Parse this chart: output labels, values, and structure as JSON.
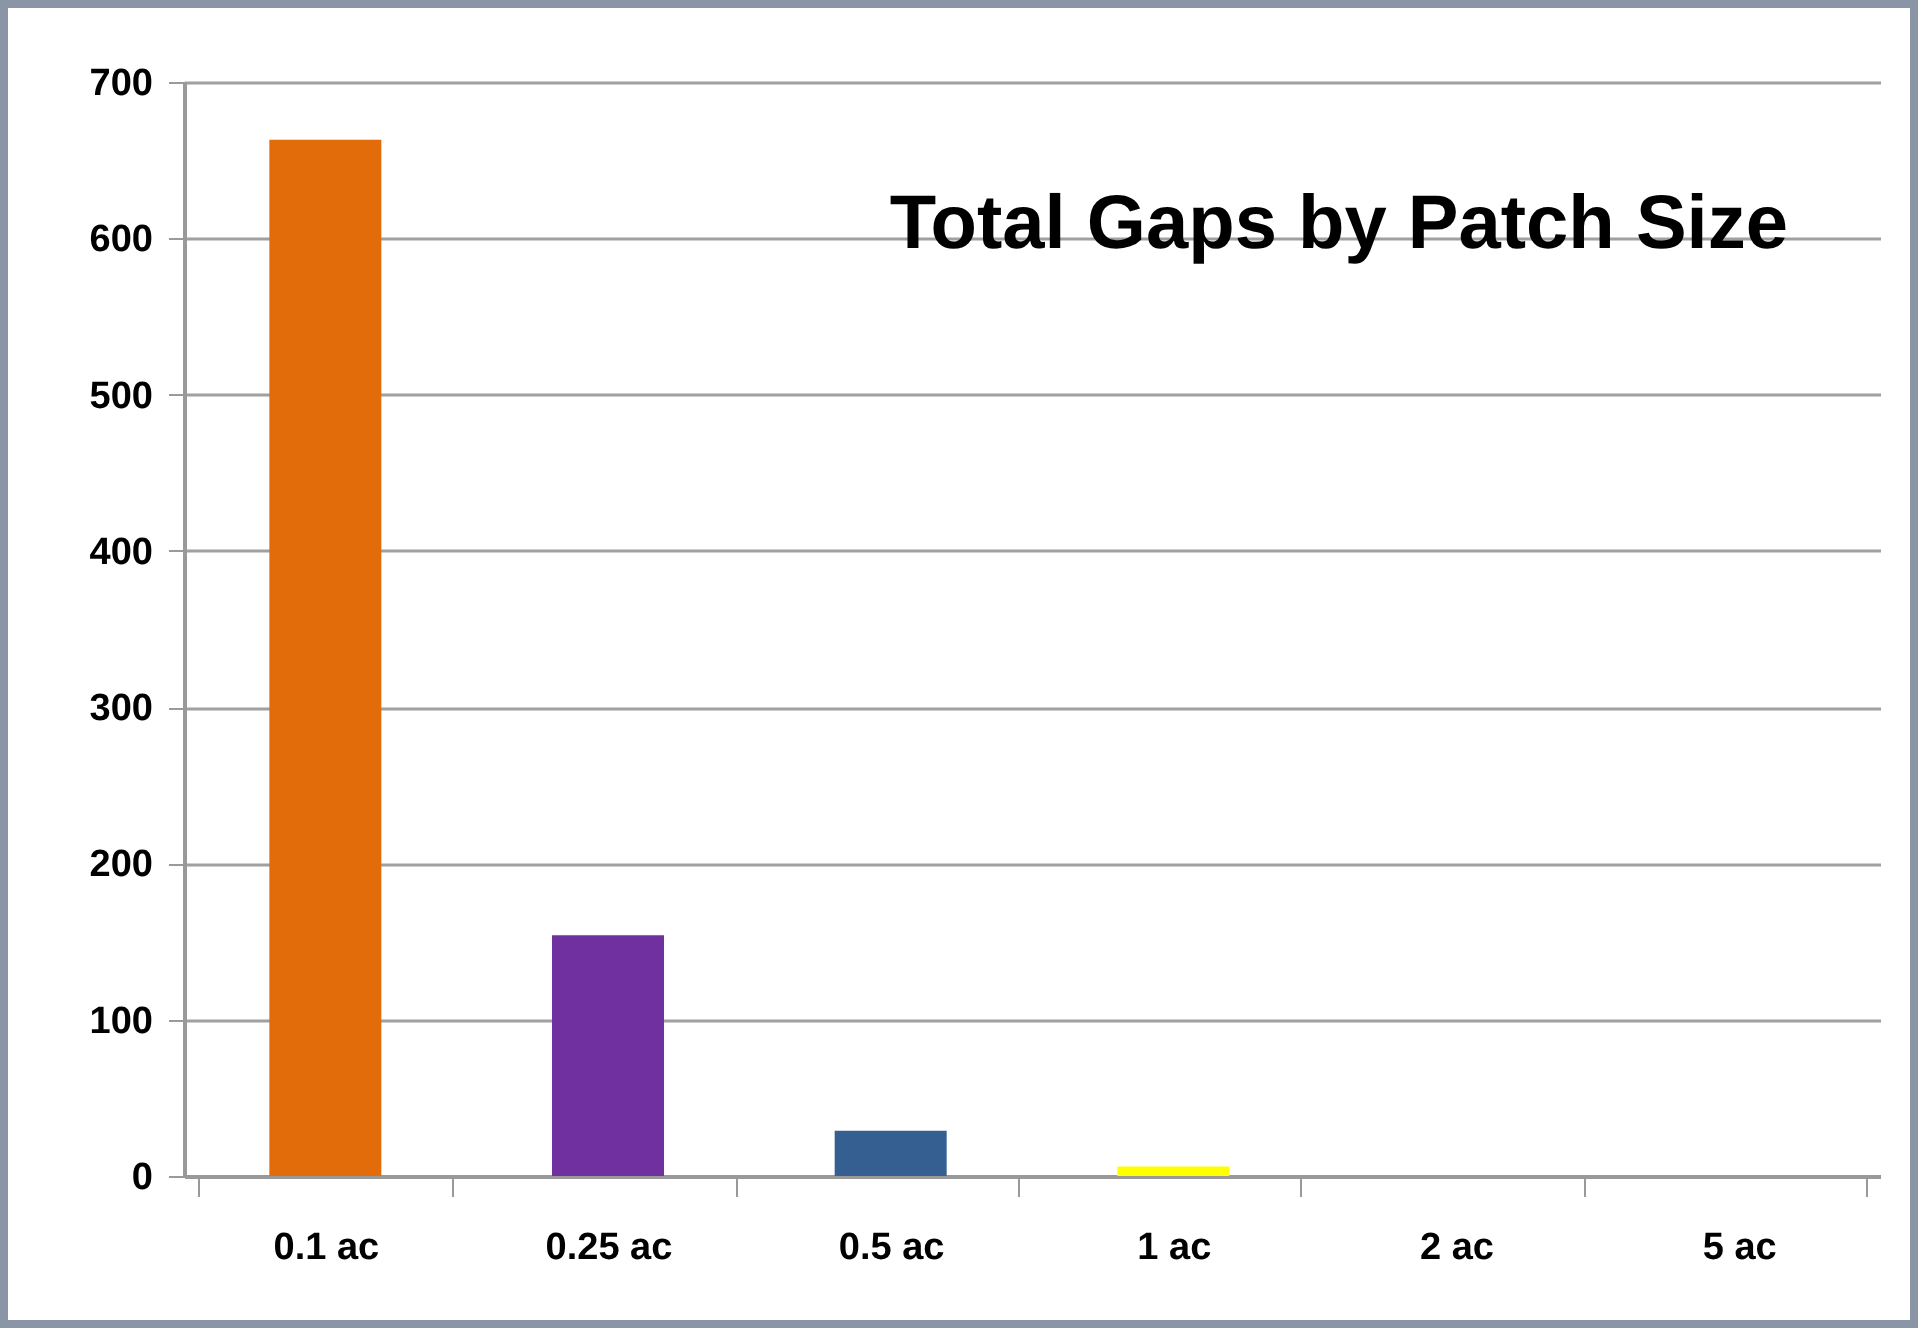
{
  "chart_data": {
    "type": "bar",
    "title": "Total Gaps by Patch Size",
    "categories": [
      "0.1 ac",
      "0.25 ac",
      "0.5 ac",
      "1 ac",
      "2 ac",
      "5 ac"
    ],
    "values": [
      663,
      154,
      29,
      6,
      0,
      0
    ],
    "colors": [
      "#e36c0a",
      "#7030a0",
      "#355f91",
      "#ffff00",
      "#4f81bd",
      "#4f81bd"
    ],
    "ylim": [
      0,
      700
    ],
    "yticks": [
      0,
      100,
      200,
      300,
      400,
      500,
      600,
      700
    ],
    "grid": "y",
    "legend": false
  }
}
